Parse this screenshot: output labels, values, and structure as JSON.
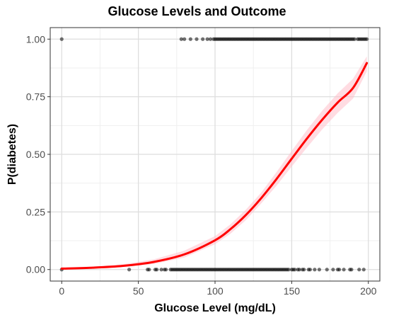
{
  "chart_data": {
    "type": "scatter",
    "title": "Glucose Levels and Outcome",
    "xlabel": "Glucose Level (mg/dL)",
    "ylabel": "P(diabetes)",
    "xlim": [
      -7.5,
      207.5
    ],
    "ylim": [
      -0.05,
      1.05
    ],
    "x_ticks": [
      0,
      50,
      100,
      150,
      200
    ],
    "x_tick_labels": [
      "0",
      "50",
      "100",
      "150",
      "200"
    ],
    "y_ticks": [
      0,
      0.25,
      0.5,
      0.75,
      1.0
    ],
    "y_tick_labels": [
      "0.00",
      "0.25",
      "0.50",
      "0.75",
      "1.00"
    ],
    "grid": true,
    "colors": {
      "fit_line": "#ff0000",
      "band": "#ffc0cb",
      "points": "#000000",
      "frame": "#333333",
      "grid_major": "#dedede",
      "grid_minor": "#efefef"
    },
    "series": [
      {
        "kind": "points",
        "outcome": 1,
        "x": [
          0,
          78,
          80,
          84,
          88,
          92,
          95,
          97,
          99,
          100,
          101,
          102,
          103,
          104,
          105,
          106,
          107,
          108,
          109,
          110,
          111,
          112,
          113,
          114,
          115,
          116,
          117,
          118,
          119,
          120,
          121,
          122,
          123,
          124,
          125,
          126,
          127,
          128,
          129,
          130,
          131,
          132,
          133,
          134,
          135,
          136,
          137,
          138,
          139,
          140,
          141,
          142,
          143,
          144,
          145,
          146,
          147,
          148,
          149,
          150,
          151,
          152,
          153,
          154,
          155,
          156,
          157,
          158,
          159,
          160,
          161,
          162,
          163,
          164,
          165,
          166,
          167,
          168,
          169,
          170,
          171,
          172,
          173,
          174,
          175,
          176,
          177,
          178,
          179,
          180,
          181,
          182,
          183,
          184,
          185,
          186,
          187,
          188,
          189,
          190,
          191,
          193,
          194,
          195,
          196,
          197,
          198,
          199
        ]
      },
      {
        "kind": "points",
        "outcome": 0,
        "x": [
          0,
          44,
          56,
          57,
          61,
          62,
          65,
          67,
          68,
          71,
          72,
          73,
          74,
          75,
          76,
          77,
          78,
          79,
          80,
          81,
          82,
          83,
          84,
          85,
          86,
          87,
          88,
          89,
          90,
          91,
          92,
          93,
          94,
          95,
          96,
          97,
          98,
          99,
          100,
          101,
          102,
          103,
          104,
          105,
          106,
          107,
          108,
          109,
          110,
          111,
          112,
          113,
          114,
          115,
          116,
          117,
          118,
          119,
          120,
          121,
          122,
          123,
          124,
          125,
          126,
          127,
          128,
          129,
          130,
          131,
          132,
          133,
          134,
          135,
          136,
          137,
          138,
          139,
          140,
          141,
          142,
          143,
          144,
          145,
          146,
          147,
          148,
          150,
          151,
          152,
          154,
          155,
          157,
          158,
          161,
          162,
          165,
          168,
          173,
          177,
          180,
          181,
          184,
          188,
          189,
          194,
          197
        ]
      },
      {
        "kind": "logistic_fit",
        "x": [
          0,
          20,
          40,
          60,
          80,
          100,
          110,
          120,
          130,
          140,
          150,
          160,
          170,
          180,
          190,
          199
        ],
        "y": [
          0.004,
          0.008,
          0.016,
          0.033,
          0.066,
          0.127,
          0.175,
          0.236,
          0.309,
          0.392,
          0.481,
          0.569,
          0.651,
          0.725,
          0.788,
          0.896
        ],
        "lower": [
          0.002,
          0.005,
          0.011,
          0.024,
          0.052,
          0.11,
          0.155,
          0.214,
          0.286,
          0.363,
          0.447,
          0.53,
          0.609,
          0.68,
          0.742,
          0.86
        ],
        "upper": [
          0.008,
          0.013,
          0.023,
          0.044,
          0.082,
          0.145,
          0.196,
          0.259,
          0.333,
          0.422,
          0.515,
          0.606,
          0.69,
          0.765,
          0.828,
          0.925
        ]
      }
    ]
  }
}
